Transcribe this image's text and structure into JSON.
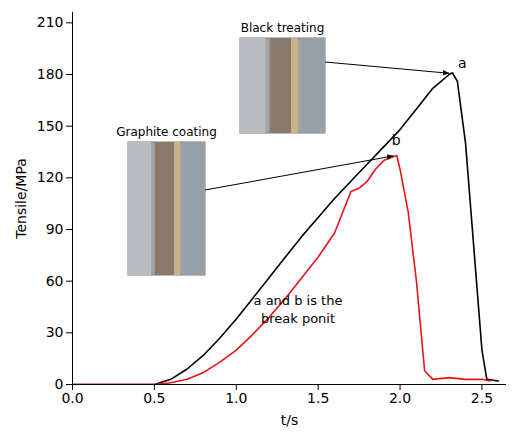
{
  "chart_data": {
    "type": "line",
    "xlabel": "t/s",
    "ylabel": "Tensile/MPa",
    "xlim": [
      0,
      2.65
    ],
    "ylim": [
      0,
      216
    ],
    "xticks": [
      {
        "value": 0,
        "label": "0.0"
      },
      {
        "value": 0.5,
        "label": "0.5"
      },
      {
        "value": 1,
        "label": "1.0"
      },
      {
        "value": 1.5,
        "label": "1.5"
      },
      {
        "value": 2,
        "label": "2.0"
      },
      {
        "value": 2.5,
        "label": "2.5"
      }
    ],
    "yticks": [
      0,
      30,
      60,
      90,
      120,
      150,
      180,
      210
    ],
    "grid": false,
    "series": [
      {
        "color": "#000000",
        "inset_label": "Black treating",
        "point_label": "a",
        "x": [
          0,
          0.5,
          0.6,
          0.7,
          0.8,
          0.9,
          1.0,
          1.1,
          1.2,
          1.3,
          1.4,
          1.5,
          1.6,
          1.7,
          1.8,
          1.9,
          2.0,
          2.1,
          2.2,
          2.3,
          2.32,
          2.35,
          2.4,
          2.45,
          2.5,
          2.53,
          2.6
        ],
        "values": [
          0,
          0,
          3,
          9,
          17,
          27,
          38,
          50,
          62,
          74,
          86,
          97,
          108,
          118,
          128,
          138,
          148,
          160,
          172,
          180,
          181,
          176,
          140,
          80,
          20,
          3,
          2
        ]
      },
      {
        "color": "#e8141a",
        "inset_label": "Graphite coating",
        "point_label": "b",
        "x": [
          0,
          0.5,
          0.6,
          0.7,
          0.8,
          0.9,
          1.0,
          1.1,
          1.2,
          1.3,
          1.4,
          1.5,
          1.6,
          1.65,
          1.7,
          1.75,
          1.8,
          1.85,
          1.9,
          1.95,
          1.98,
          2.0,
          2.05,
          2.1,
          2.15,
          2.2,
          2.3,
          2.4,
          2.5,
          2.55
        ],
        "values": [
          0,
          0,
          1,
          3,
          7,
          13,
          20,
          29,
          39,
          50,
          62,
          74,
          88,
          100,
          112,
          114,
          118,
          125,
          130,
          132,
          133,
          125,
          100,
          60,
          8,
          3,
          4,
          3,
          3,
          2
        ]
      }
    ],
    "annotation": "a and b is the break ponit"
  }
}
